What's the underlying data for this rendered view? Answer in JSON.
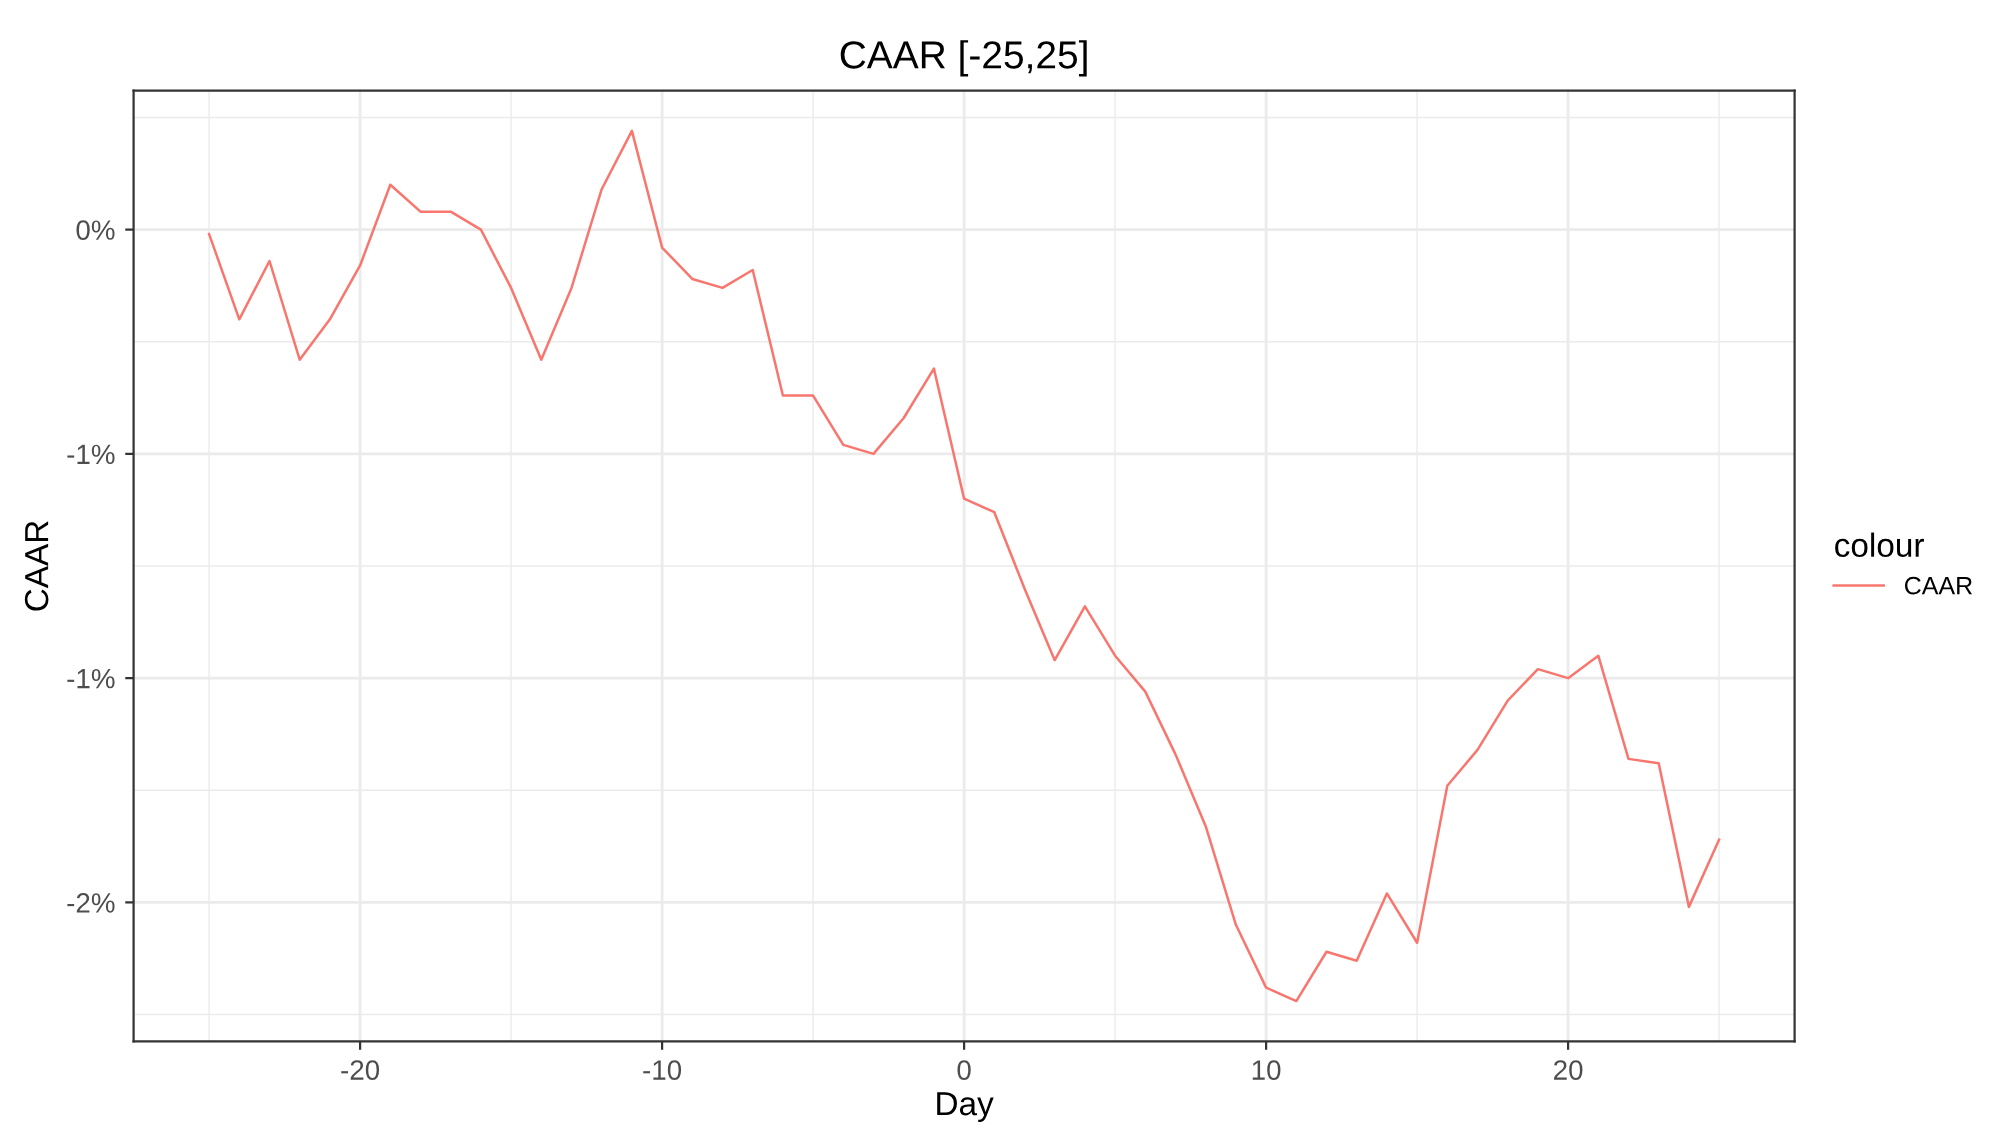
{
  "chart_data": {
    "type": "line",
    "title": "CAAR [-25,25]",
    "xlabel": "Day",
    "ylabel": "CAAR",
    "legend_title": "colour",
    "legend": "right",
    "grid": true,
    "x": [
      -25,
      -24,
      -23,
      -22,
      -21,
      -20,
      -19,
      -18,
      -17,
      -16,
      -15,
      -14,
      -13,
      -12,
      -11,
      -10,
      -9,
      -8,
      -7,
      -6,
      -5,
      -4,
      -3,
      -2,
      -1,
      0,
      1,
      2,
      3,
      4,
      5,
      6,
      7,
      8,
      9,
      10,
      11,
      12,
      13,
      14,
      15,
      16,
      17,
      18,
      19,
      20,
      21,
      22,
      23,
      24,
      25
    ],
    "series": [
      {
        "name": "CAAR",
        "color": "#f8766d",
        "values": [
          -0.01,
          -0.2,
          -0.07,
          -0.29,
          -0.2,
          -0.08,
          0.1,
          0.04,
          0.04,
          0.0,
          -0.13,
          -0.29,
          -0.13,
          0.09,
          0.22,
          -0.04,
          -0.11,
          -0.13,
          -0.09,
          -0.37,
          -0.37,
          -0.48,
          -0.5,
          -0.42,
          -0.31,
          -0.6,
          -0.63,
          -0.8,
          -0.96,
          -0.84,
          -0.95,
          -1.03,
          -1.17,
          -1.33,
          -1.55,
          -1.69,
          -1.72,
          -1.61,
          -1.63,
          -1.48,
          -1.59,
          -1.24,
          -1.16,
          -1.05,
          -0.98,
          -1.0,
          -0.95,
          -1.18,
          -1.19,
          -1.51,
          -1.36
        ]
      }
    ],
    "xlim": [
      -27.5,
      27.5
    ],
    "xticks": [
      -20,
      -10,
      0,
      10,
      20
    ],
    "ylim": [
      -1.81,
      0.31
    ],
    "yticks": [
      {
        "value": 0,
        "label": "0%"
      },
      {
        "value": -0.5,
        "label": "-1%"
      },
      {
        "value": -1,
        "label": "-1%"
      },
      {
        "value": -1.5,
        "label": "-2%"
      }
    ]
  }
}
